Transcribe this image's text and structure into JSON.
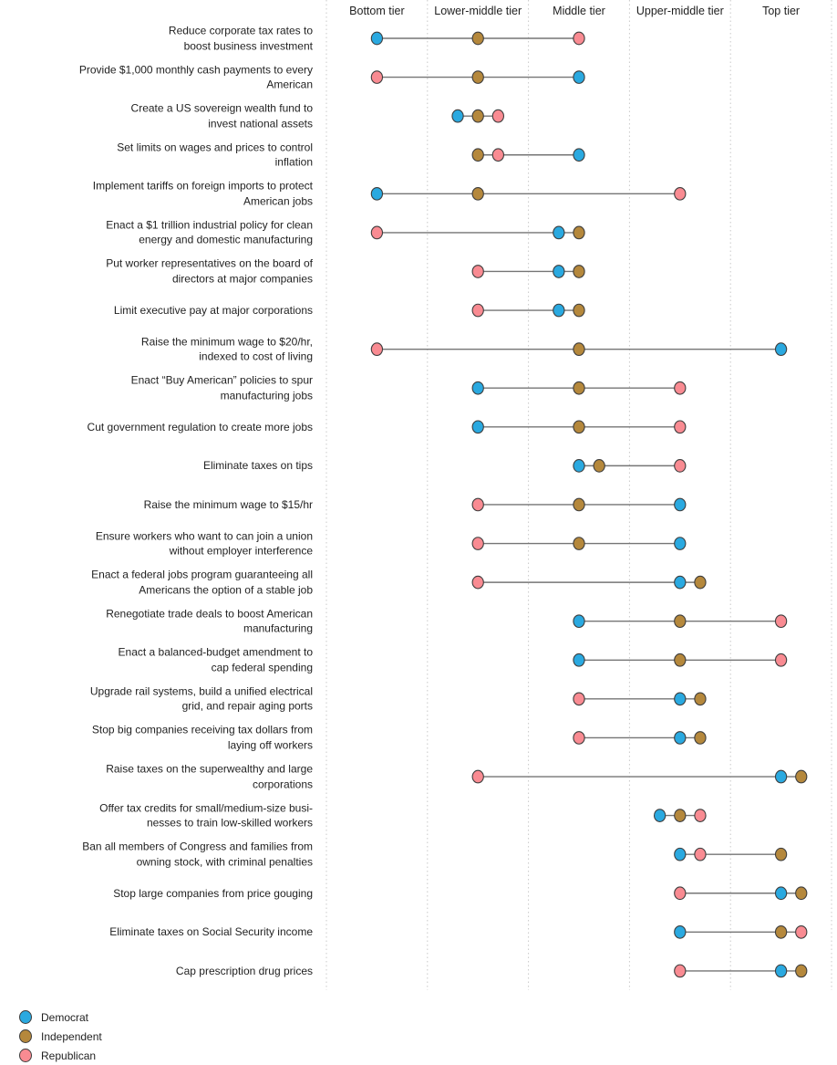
{
  "colors": {
    "democrat": "#2aa9e0",
    "independent": "#b5883c",
    "republican": "#f98b92",
    "dot_stroke": "#3d3d3d",
    "connector_line": "#757575",
    "gridline": "#c9c9c9",
    "text": "#1f1f1f"
  },
  "legend": [
    {
      "label": "Democrat",
      "color_key": "democrat"
    },
    {
      "label": "Independent",
      "color_key": "independent"
    },
    {
      "label": "Republican",
      "color_key": "republican"
    }
  ],
  "chart_data": {
    "type": "scatter",
    "subtype": "dumbbell-dot-plot",
    "title": "",
    "x_axis": "tier rating, 1 = Bottom tier … 5 = Top tier; fractional offsets are side-by-side jitter of tied dots",
    "xlim": [
      0.5,
      5.5
    ],
    "grid": "vertical dotted tier separators",
    "legend_position": "bottom-left",
    "tier_labels": [
      "Bottom tier",
      "Lower-middle tier",
      "Middle tier",
      "Upper-middle tier",
      "Top tier"
    ],
    "series_names": [
      "Democrat",
      "Independent",
      "Republican"
    ],
    "rows": [
      {
        "label": "Reduce corporate tax rates to\nboost business investment",
        "democrat": 1,
        "independent": 2,
        "republican": 3
      },
      {
        "label": "Provide $1,000 monthly cash payments to every\nAmerican",
        "democrat": 3,
        "independent": 2,
        "republican": 1
      },
      {
        "label": "Create a US sovereign wealth fund to\ninvest national assets",
        "democrat": 1.8,
        "independent": 2,
        "republican": 2.2
      },
      {
        "label": "Set limits on wages and prices to control\ninflation",
        "democrat": 3,
        "independent": 2,
        "republican": 2.2
      },
      {
        "label": "Implement tariffs on foreign imports to protect\nAmerican jobs",
        "democrat": 1,
        "independent": 2,
        "republican": 4
      },
      {
        "label": "Enact a $1 trillion industrial policy for clean\nenergy and domestic manufacturing",
        "democrat": 2.8,
        "independent": 3,
        "republican": 1
      },
      {
        "label": "Put worker representatives on the board of\ndirectors at major companies",
        "democrat": 2.8,
        "independent": 3,
        "republican": 2
      },
      {
        "label": "Limit executive pay at major corporations",
        "democrat": 2.8,
        "independent": 3,
        "republican": 2
      },
      {
        "label": "Raise the minimum wage to $20/hr,\nindexed to cost of living",
        "democrat": 5,
        "independent": 3,
        "republican": 1
      },
      {
        "label": "Enact “Buy American” policies to spur\nmanufacturing jobs",
        "democrat": 2,
        "independent": 3,
        "republican": 4
      },
      {
        "label": "Cut government regulation to create more jobs",
        "democrat": 2,
        "independent": 3,
        "republican": 4
      },
      {
        "label": "Eliminate taxes on tips",
        "democrat": 3,
        "independent": 3.2,
        "republican": 4
      },
      {
        "label": "Raise the minimum wage to $15/hr",
        "democrat": 4,
        "independent": 3,
        "republican": 2
      },
      {
        "label": "Ensure workers who want to can join a union\nwithout employer interference",
        "democrat": 4,
        "independent": 3,
        "republican": 2
      },
      {
        "label": "Enact a federal jobs program guaranteeing all\nAmericans the option of a stable job",
        "democrat": 4,
        "independent": 4.2,
        "republican": 2
      },
      {
        "label": "Renegotiate trade deals to boost American\nmanufacturing",
        "democrat": 3,
        "independent": 4,
        "republican": 5
      },
      {
        "label": "Enact a balanced-budget amendment to\ncap federal spending",
        "democrat": 3,
        "independent": 4,
        "republican": 5
      },
      {
        "label": "Upgrade rail systems, build a unified electrical\ngrid, and repair aging ports",
        "democrat": 4,
        "independent": 4.2,
        "republican": 3
      },
      {
        "label": "Stop big companies receiving tax dollars from\nlaying off workers",
        "democrat": 4,
        "independent": 4.2,
        "republican": 3
      },
      {
        "label": "Raise taxes on the superwealthy and large\ncorporations",
        "democrat": 5,
        "independent": 5.2,
        "republican": 2
      },
      {
        "label": "Offer tax credits for small/medium-size busi-\nnesses to train low-skilled workers",
        "democrat": 3.8,
        "independent": 4,
        "republican": 4.2
      },
      {
        "label": "Ban all members of Congress and families from\nowning stock, with criminal penalties",
        "democrat": 4,
        "independent": 5,
        "republican": 4.2
      },
      {
        "label": "Stop large companies from price gouging",
        "democrat": 5,
        "independent": 5.2,
        "republican": 4
      },
      {
        "label": "Eliminate taxes on Social Security income",
        "democrat": 4,
        "independent": 5,
        "republican": 5.2
      },
      {
        "label": "Cap prescription drug prices",
        "democrat": 5,
        "independent": 5.2,
        "republican": 4
      }
    ]
  }
}
